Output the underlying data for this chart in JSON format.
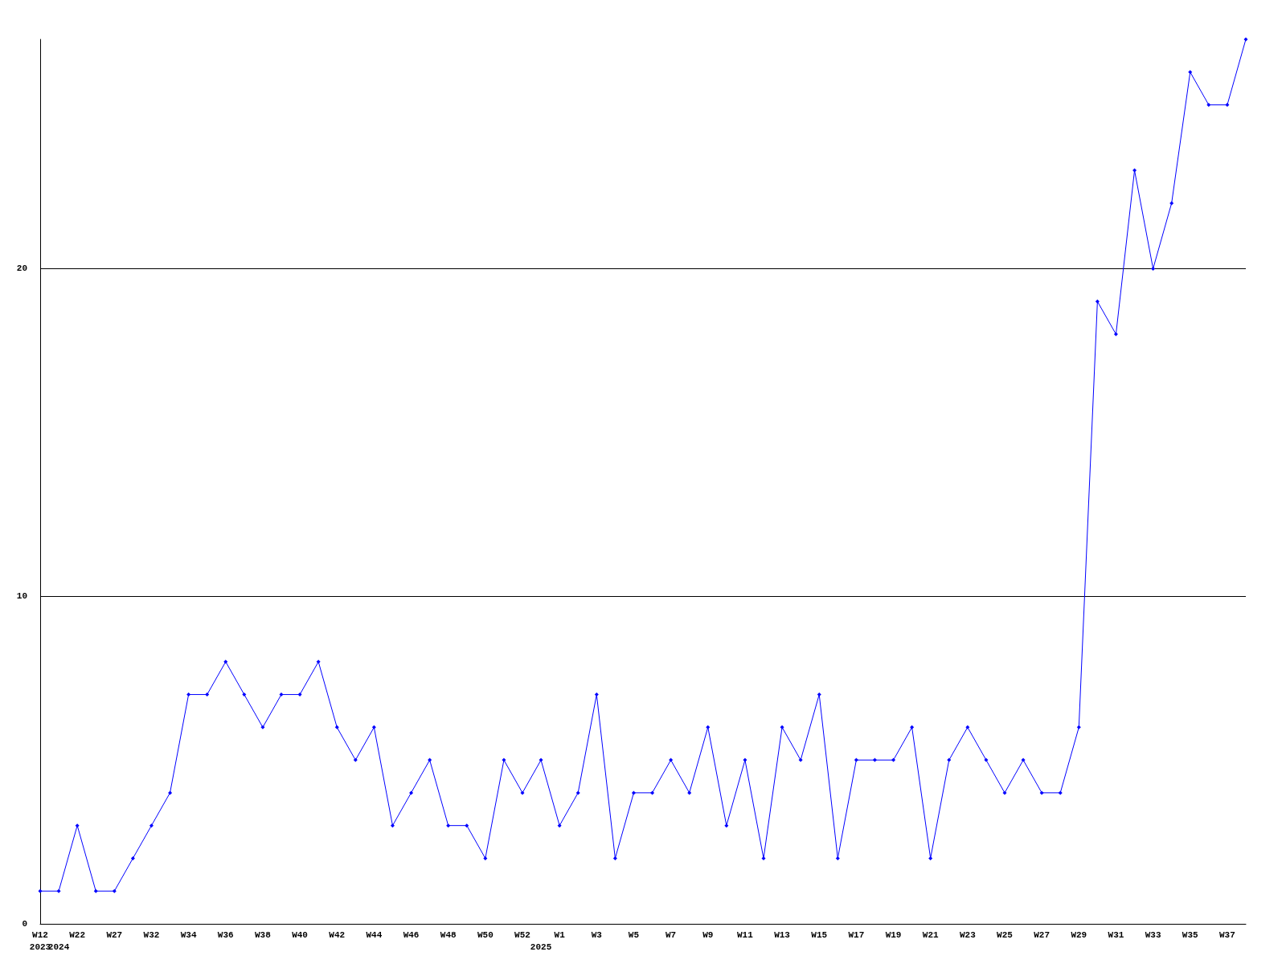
{
  "chart_data": {
    "type": "line",
    "categories": [
      "W12\n2023",
      "\n2024",
      "W22",
      null,
      "W27",
      null,
      "W32",
      null,
      "W34",
      null,
      "W36",
      null,
      "W38",
      null,
      "W40",
      null,
      "W42",
      null,
      "W44",
      null,
      "W46",
      null,
      "W48",
      null,
      "W50",
      null,
      "W52",
      "\n2025",
      "W1",
      null,
      "W3",
      null,
      "W5",
      null,
      "W7",
      null,
      "W9",
      null,
      "W11",
      null,
      "W13",
      null,
      "W15",
      null,
      "W17",
      null,
      "W19",
      null,
      "W21",
      null,
      "W23",
      null,
      "W25",
      null,
      "W27",
      null,
      "W29",
      null,
      "W31",
      null,
      "W33",
      null,
      "W35",
      null,
      "W37",
      null
    ],
    "series": [
      {
        "color": "#0000ff",
        "values": [
          1,
          1,
          3,
          1,
          1,
          2,
          3,
          4,
          7,
          7,
          8,
          7,
          6,
          7,
          7,
          8,
          6,
          5,
          6,
          3,
          4,
          5,
          3,
          3,
          2,
          5,
          4,
          5,
          3,
          4,
          7,
          2,
          4,
          4,
          5,
          4,
          6,
          3,
          5,
          2,
          6,
          5,
          7,
          2,
          5,
          5,
          5,
          6,
          2,
          5,
          6,
          5,
          4,
          5,
          4,
          4,
          6,
          19,
          18,
          23,
          20,
          22,
          26,
          25,
          25,
          27
        ]
      }
    ],
    "ylim": [
      0,
      27
    ],
    "yticks": [
      0,
      10,
      20
    ],
    "grid": "y",
    "marker": "diamond",
    "line_style": "solid"
  }
}
